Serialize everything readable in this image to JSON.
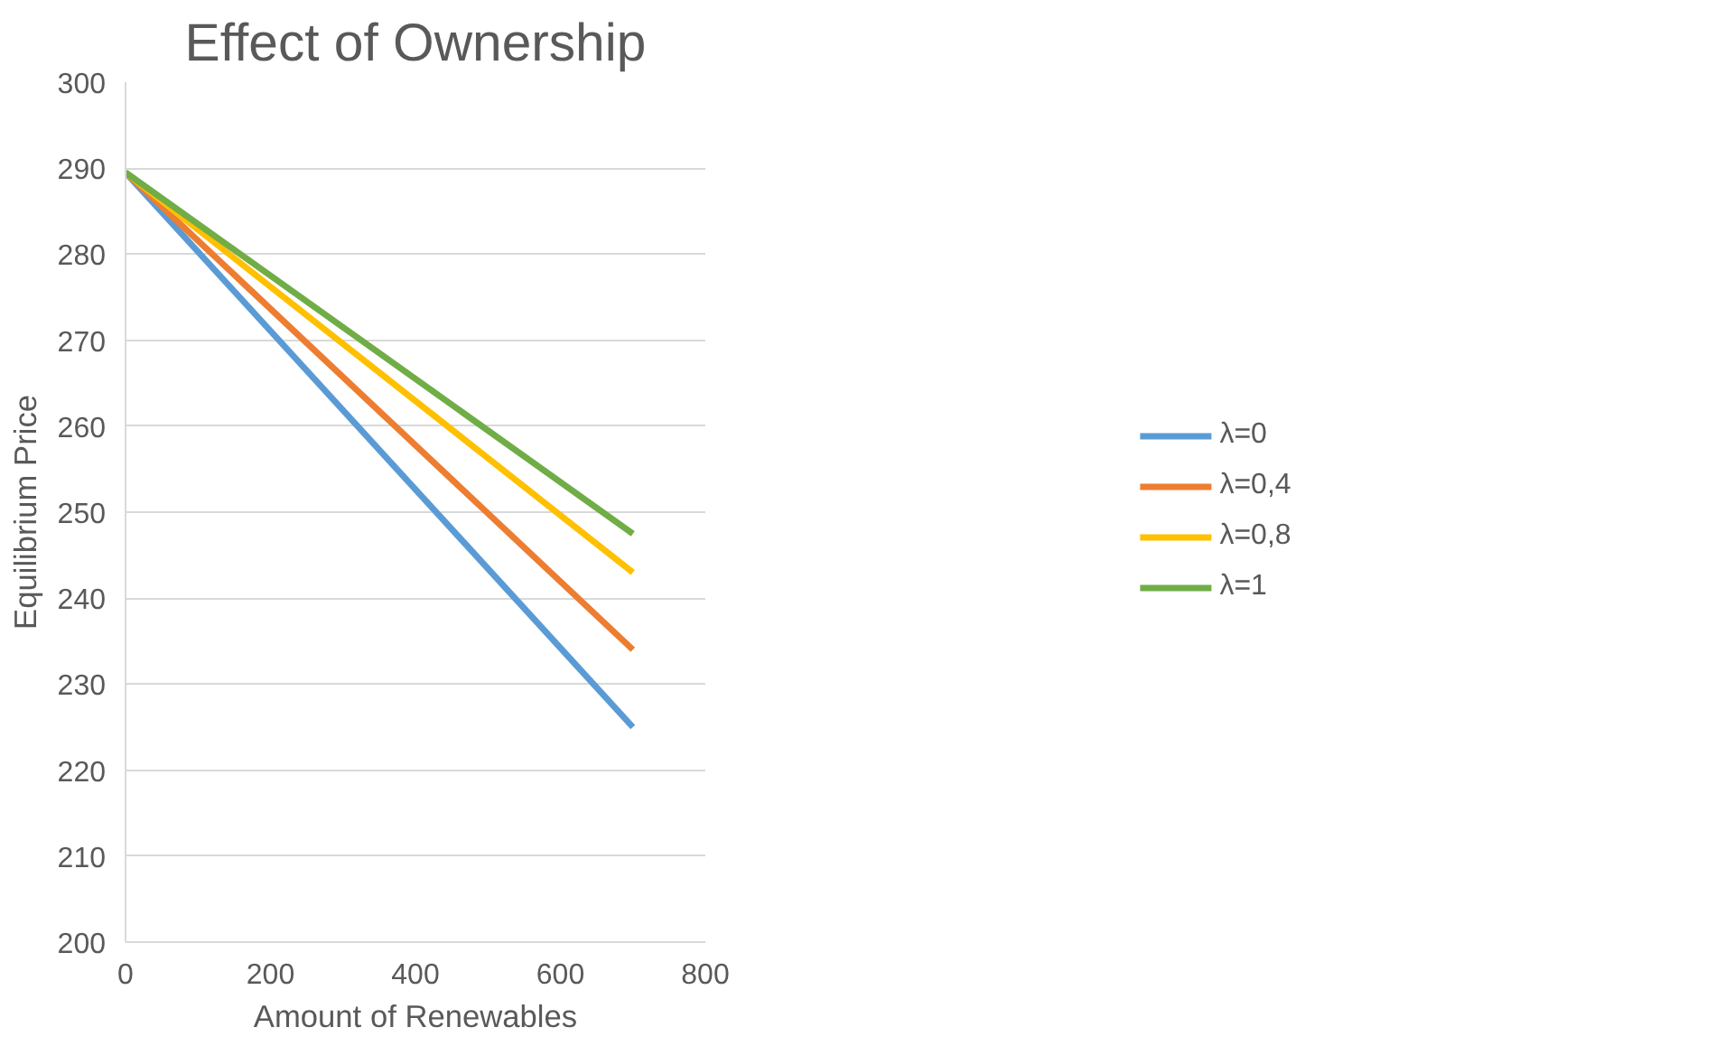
{
  "chart_data": {
    "type": "line",
    "title": "Effect of Ownership",
    "xlabel": "Amount of Renewables",
    "ylabel": "Equilibrium Price",
    "x": [
      0,
      700
    ],
    "series": [
      {
        "name": "λ=0",
        "color": "#5b9bd5",
        "values": [
          289.5,
          225
        ]
      },
      {
        "name": "λ=0,4",
        "color": "#ed7d31",
        "values": [
          289.5,
          234
        ]
      },
      {
        "name": "λ=0,8",
        "color": "#ffc000",
        "values": [
          289.5,
          243
        ]
      },
      {
        "name": "λ=1",
        "color": "#70ad47",
        "values": [
          289.5,
          247.5
        ]
      }
    ],
    "xlim": [
      0,
      800
    ],
    "xticks": [
      0,
      200,
      400,
      600,
      800
    ],
    "ylim": [
      200,
      300
    ],
    "yticks": [
      200,
      210,
      220,
      230,
      240,
      250,
      260,
      270,
      280,
      290,
      300
    ],
    "grid": "y",
    "legend": "right",
    "marker": "none",
    "line_style": "solid"
  }
}
